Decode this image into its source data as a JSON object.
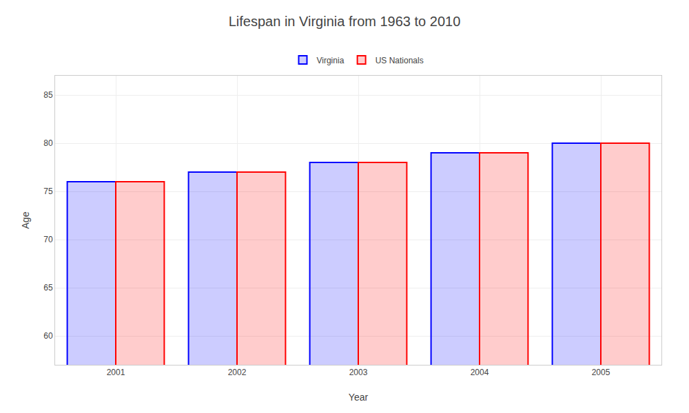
{
  "chart_data": {
    "type": "bar",
    "title": "Lifespan in Virginia from 1963 to 2010",
    "xlabel": "Year",
    "ylabel": "Age",
    "categories": [
      "2001",
      "2002",
      "2003",
      "2004",
      "2005"
    ],
    "series": [
      {
        "name": "Virginia",
        "color": "#0000ff",
        "values": [
          76.0,
          77.0,
          78.0,
          79.0,
          80.0
        ]
      },
      {
        "name": "US Nationals",
        "color": "#ff0000",
        "values": [
          76.0,
          77.0,
          78.0,
          79.0,
          80.0
        ]
      }
    ],
    "ylim": [
      57,
      87
    ],
    "yticks": [
      60,
      65,
      70,
      75,
      80,
      85
    ],
    "grid": true,
    "legend": "top"
  }
}
